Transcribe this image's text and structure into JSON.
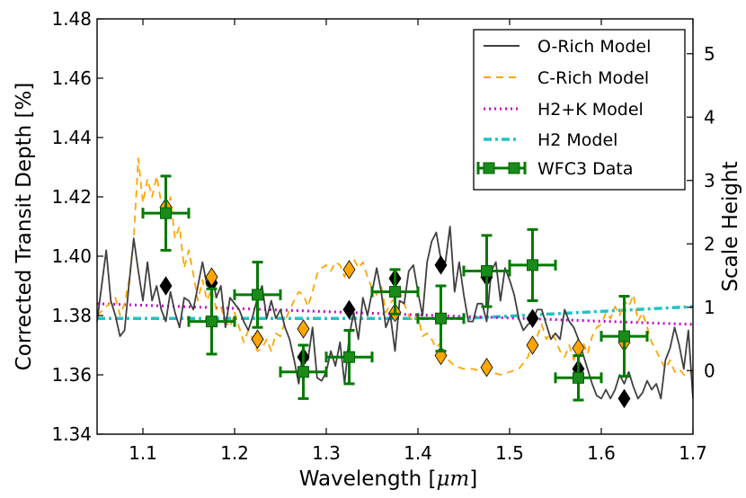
{
  "chart_data": {
    "type": "line",
    "xlabel": "Wavelength [",
    "xlabel_math": "μm",
    "xlabel_end": "]",
    "ylabel": "Corrected Transit Depth [%]",
    "y2label": "Scale Height",
    "xlim": [
      1.05,
      1.7
    ],
    "ylim": [
      1.34,
      1.48
    ],
    "y2lim": [
      -1.003,
      5.55
    ],
    "x_ticks": [
      1.1,
      1.2,
      1.3,
      1.4,
      1.5,
      1.6,
      1.7
    ],
    "x_tick_labels": [
      "1.1",
      "1.2",
      "1.3",
      "1.4",
      "1.5",
      "1.6",
      "1.7"
    ],
    "y_ticks": [
      1.34,
      1.36,
      1.38,
      1.4,
      1.42,
      1.44,
      1.46,
      1.48
    ],
    "y_tick_labels": [
      "1.34",
      "1.36",
      "1.38",
      "1.40",
      "1.42",
      "1.44",
      "1.46",
      "1.48"
    ],
    "y2_ticks": [
      0,
      1,
      2,
      3,
      4,
      5
    ],
    "y2_tick_labels": [
      "0",
      "1",
      "2",
      "3",
      "4",
      "5"
    ],
    "legend_position": "top-right",
    "colors": {
      "o_rich": "#404040",
      "c_rich": "#ffa500",
      "h2k": "#cc00cc",
      "h2": "#22c3c3",
      "data": "#007a00",
      "data_marker": "#1a8a1a"
    },
    "series": [
      {
        "name": "O-Rich Model",
        "style": "solid",
        "x": [
          1.05,
          1.06,
          1.065,
          1.07,
          1.075,
          1.08,
          1.085,
          1.09,
          1.095,
          1.1,
          1.105,
          1.11,
          1.115,
          1.12,
          1.125,
          1.13,
          1.135,
          1.14,
          1.145,
          1.15,
          1.155,
          1.16,
          1.165,
          1.17,
          1.175,
          1.18,
          1.185,
          1.19,
          1.195,
          1.2,
          1.205,
          1.21,
          1.215,
          1.22,
          1.225,
          1.23,
          1.235,
          1.24,
          1.245,
          1.25,
          1.255,
          1.26,
          1.265,
          1.27,
          1.275,
          1.28,
          1.285,
          1.29,
          1.295,
          1.3,
          1.305,
          1.31,
          1.315,
          1.32,
          1.325,
          1.33,
          1.335,
          1.34,
          1.345,
          1.35,
          1.355,
          1.36,
          1.365,
          1.37,
          1.375,
          1.38,
          1.385,
          1.39,
          1.395,
          1.4,
          1.405,
          1.41,
          1.415,
          1.42,
          1.425,
          1.43,
          1.435,
          1.44,
          1.445,
          1.45,
          1.455,
          1.46,
          1.465,
          1.47,
          1.475,
          1.48,
          1.485,
          1.49,
          1.495,
          1.5,
          1.505,
          1.51,
          1.515,
          1.52,
          1.525,
          1.53,
          1.535,
          1.54,
          1.545,
          1.55,
          1.555,
          1.56,
          1.565,
          1.57,
          1.575,
          1.58,
          1.585,
          1.59,
          1.595,
          1.6,
          1.605,
          1.61,
          1.615,
          1.62,
          1.625,
          1.63,
          1.635,
          1.64,
          1.645,
          1.65,
          1.655,
          1.66,
          1.665,
          1.67,
          1.675,
          1.68,
          1.685,
          1.69,
          1.695,
          1.7
        ],
        "values": [
          1.378,
          1.402,
          1.385,
          1.38,
          1.373,
          1.375,
          1.391,
          1.406,
          1.395,
          1.385,
          1.398,
          1.385,
          1.39,
          1.382,
          1.378,
          1.388,
          1.381,
          1.376,
          1.386,
          1.385,
          1.382,
          1.39,
          1.398,
          1.39,
          1.395,
          1.386,
          1.39,
          1.376,
          1.386,
          1.384,
          1.382,
          1.378,
          1.375,
          1.38,
          1.386,
          1.39,
          1.379,
          1.385,
          1.379,
          1.382,
          1.376,
          1.372,
          1.365,
          1.357,
          1.369,
          1.365,
          1.376,
          1.359,
          1.358,
          1.361,
          1.368,
          1.363,
          1.371,
          1.357,
          1.373,
          1.381,
          1.372,
          1.386,
          1.38,
          1.388,
          1.396,
          1.388,
          1.376,
          1.38,
          1.368,
          1.385,
          1.384,
          1.395,
          1.397,
          1.388,
          1.38,
          1.398,
          1.405,
          1.408,
          1.399,
          1.398,
          1.41,
          1.388,
          1.398,
          1.387,
          1.378,
          1.378,
          1.384,
          1.384,
          1.378,
          1.395,
          1.398,
          1.385,
          1.396,
          1.392,
          1.387,
          1.379,
          1.375,
          1.377,
          1.378,
          1.382,
          1.382,
          1.377,
          1.372,
          1.374,
          1.372,
          1.382,
          1.378,
          1.376,
          1.372,
          1.367,
          1.362,
          1.357,
          1.353,
          1.352,
          1.355,
          1.352,
          1.355,
          1.36,
          1.357,
          1.361,
          1.356,
          1.352,
          1.354,
          1.358,
          1.355,
          1.357,
          1.352,
          1.365,
          1.369,
          1.376,
          1.37,
          1.362,
          1.375,
          1.352
        ]
      },
      {
        "name": "C-Rich Model",
        "style": "dashed",
        "x": [
          1.05,
          1.06,
          1.07,
          1.075,
          1.08,
          1.085,
          1.09,
          1.095,
          1.1,
          1.105,
          1.11,
          1.115,
          1.12,
          1.125,
          1.13,
          1.135,
          1.14,
          1.145,
          1.15,
          1.155,
          1.16,
          1.165,
          1.17,
          1.175,
          1.18,
          1.185,
          1.19,
          1.195,
          1.2,
          1.205,
          1.21,
          1.215,
          1.22,
          1.225,
          1.23,
          1.235,
          1.24,
          1.245,
          1.25,
          1.255,
          1.26,
          1.265,
          1.27,
          1.275,
          1.28,
          1.285,
          1.29,
          1.295,
          1.3,
          1.305,
          1.31,
          1.315,
          1.32,
          1.325,
          1.33,
          1.335,
          1.34,
          1.345,
          1.35,
          1.355,
          1.36,
          1.365,
          1.37,
          1.375,
          1.38,
          1.385,
          1.39,
          1.395,
          1.4,
          1.405,
          1.41,
          1.415,
          1.42,
          1.425,
          1.43,
          1.44,
          1.45,
          1.46,
          1.47,
          1.48,
          1.49,
          1.5,
          1.51,
          1.52,
          1.525,
          1.53,
          1.535,
          1.54,
          1.545,
          1.55,
          1.555,
          1.56,
          1.565,
          1.57,
          1.575,
          1.58,
          1.585,
          1.59,
          1.595,
          1.6,
          1.605,
          1.61,
          1.615,
          1.62,
          1.625,
          1.63,
          1.635,
          1.64,
          1.645,
          1.65,
          1.655,
          1.66,
          1.665,
          1.67,
          1.675,
          1.68,
          1.685,
          1.69,
          1.7
        ],
        "values": [
          1.38,
          1.383,
          1.386,
          1.38,
          1.384,
          1.392,
          1.406,
          1.433,
          1.418,
          1.426,
          1.42,
          1.427,
          1.418,
          1.412,
          1.42,
          1.406,
          1.41,
          1.396,
          1.402,
          1.394,
          1.385,
          1.392,
          1.385,
          1.389,
          1.382,
          1.383,
          1.378,
          1.376,
          1.381,
          1.376,
          1.371,
          1.375,
          1.372,
          1.368,
          1.369,
          1.372,
          1.368,
          1.374,
          1.373,
          1.378,
          1.382,
          1.385,
          1.388,
          1.387,
          1.383,
          1.388,
          1.394,
          1.396,
          1.397,
          1.395,
          1.398,
          1.397,
          1.393,
          1.398,
          1.399,
          1.396,
          1.398,
          1.393,
          1.389,
          1.387,
          1.39,
          1.381,
          1.384,
          1.386,
          1.388,
          1.384,
          1.38,
          1.378,
          1.38,
          1.373,
          1.374,
          1.372,
          1.369,
          1.371,
          1.366,
          1.363,
          1.362,
          1.362,
          1.361,
          1.361,
          1.36,
          1.361,
          1.362,
          1.366,
          1.371,
          1.373,
          1.377,
          1.372,
          1.374,
          1.372,
          1.368,
          1.366,
          1.37,
          1.365,
          1.369,
          1.371,
          1.367,
          1.373,
          1.376,
          1.377,
          1.381,
          1.379,
          1.383,
          1.38,
          1.385,
          1.383,
          1.387,
          1.378,
          1.381,
          1.376,
          1.371,
          1.368,
          1.365,
          1.362,
          1.365,
          1.361,
          1.362,
          1.36,
          1.361
        ]
      },
      {
        "name": "H2+K Model",
        "style": "dotted",
        "x": [
          1.05,
          1.7
        ],
        "values": [
          1.384,
          1.377
        ]
      },
      {
        "name": "H2 Model",
        "style": "dashdot",
        "x": [
          1.05,
          1.45,
          1.7
        ],
        "values": [
          1.379,
          1.379,
          1.383
        ]
      }
    ],
    "data_series": {
      "name": "WFC3 Data",
      "x": [
        1.125,
        1.175,
        1.225,
        1.275,
        1.325,
        1.375,
        1.425,
        1.475,
        1.525,
        1.575,
        1.625
      ],
      "values": [
        1.4145,
        1.378,
        1.387,
        1.361,
        1.366,
        1.388,
        1.379,
        1.395,
        1.397,
        1.359,
        1.373
      ],
      "x_err": 0.025,
      "y_err": [
        0.0125,
        0.011,
        0.011,
        0.009,
        0.009,
        0.0075,
        0.011,
        0.012,
        0.012,
        0.0075,
        0.0135
      ]
    },
    "binned_o_rich": {
      "x": [
        1.125,
        1.175,
        1.225,
        1.275,
        1.325,
        1.375,
        1.425,
        1.475,
        1.525,
        1.575,
        1.625
      ],
      "values": [
        1.39,
        1.391,
        1.372,
        1.366,
        1.382,
        1.3925,
        1.397,
        1.393,
        1.379,
        1.362,
        1.352
      ]
    },
    "binned_c_rich": {
      "x": [
        1.125,
        1.175,
        1.225,
        1.275,
        1.325,
        1.375,
        1.425,
        1.475,
        1.525,
        1.575,
        1.625
      ],
      "values": [
        1.4165,
        1.393,
        1.372,
        1.3755,
        1.3955,
        1.381,
        1.3665,
        1.3625,
        1.37,
        1.369,
        1.371
      ]
    }
  }
}
